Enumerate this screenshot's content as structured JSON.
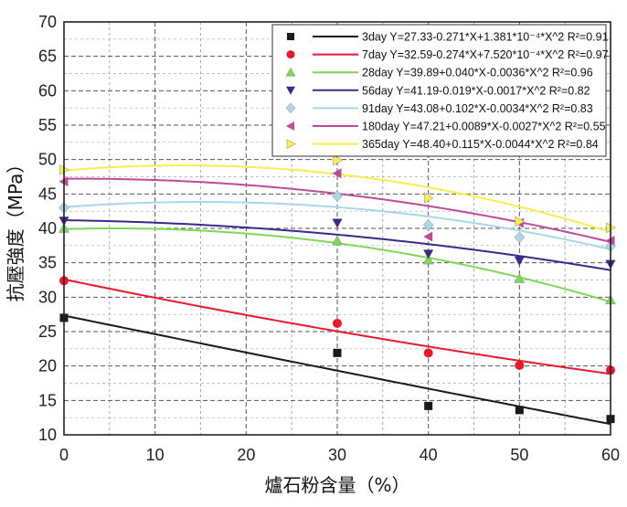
{
  "chart_data": {
    "type": "scatter",
    "xlabel": "爐石粉含量（%）",
    "ylabel": "抗壓強度（MPa）",
    "xlim": [
      0,
      60
    ],
    "ylim": [
      10,
      70
    ],
    "xticks": [
      "0",
      "10",
      "20",
      "30",
      "40",
      "50",
      "60"
    ],
    "yticks": [
      "10",
      "15",
      "20",
      "25",
      "30",
      "35",
      "40",
      "45",
      "50",
      "55",
      "60",
      "65",
      "70"
    ],
    "grid": true,
    "legend_position": "top-right",
    "series": [
      {
        "name": "3day",
        "equation": "Y=27.33-0.271*X+1.381*10⁻⁴*X^2 R²=0.91",
        "color": "#1a1a1a",
        "marker": "square",
        "x": [
          0,
          30,
          40,
          50,
          60
        ],
        "y": [
          27.0,
          21.9,
          14.2,
          13.6,
          12.3
        ],
        "fit": [
          27.33,
          -0.271,
          0.0001381
        ]
      },
      {
        "name": "7day",
        "equation": "Y=32.59-0.274*X+7.520*10⁻⁴*X^2 R²=0.97",
        "color": "#e8192c",
        "marker": "circle",
        "x": [
          0,
          30,
          40,
          50,
          60
        ],
        "y": [
          32.4,
          26.2,
          21.9,
          20.1,
          19.4
        ],
        "fit": [
          32.59,
          -0.274,
          0.000752
        ]
      },
      {
        "name": "28day",
        "equation": "Y=39.89+0.040*X-0.0036*X^2 R²=0.96",
        "color": "#7ed957",
        "marker": "triangle-up",
        "x": [
          0,
          30,
          40,
          50,
          60
        ],
        "y": [
          40.0,
          38.2,
          35.4,
          32.7,
          29.6
        ],
        "fit": [
          39.89,
          0.04,
          -0.0036
        ]
      },
      {
        "name": "56day",
        "equation": "Y=41.19-0.019*X-0.0017*X^2 R²=0.82",
        "color": "#3b2a8c",
        "marker": "triangle-down",
        "x": [
          0,
          30,
          40,
          50,
          60
        ],
        "y": [
          41.1,
          40.8,
          36.3,
          35.3,
          34.8
        ],
        "fit": [
          41.19,
          -0.019,
          -0.0017
        ]
      },
      {
        "name": "91day",
        "equation": "Y=43.08+0.102*X-0.0034*X^2 R²=0.83",
        "color": "#a9d8e8",
        "marker": "diamond",
        "x": [
          0,
          30,
          40,
          50,
          60
        ],
        "y": [
          43.0,
          44.7,
          40.5,
          38.7,
          37.4
        ],
        "fit": [
          43.08,
          0.102,
          -0.0034
        ]
      },
      {
        "name": "180day",
        "equation": "Y=47.21+0.0089*X-0.0027*X^2 R²=0.55",
        "color": "#c04a9a",
        "marker": "triangle-left",
        "x": [
          0,
          30,
          40,
          50,
          60
        ],
        "y": [
          46.8,
          48.0,
          38.8,
          40.8,
          38.2
        ],
        "fit": [
          47.21,
          0.0089,
          -0.0027
        ]
      },
      {
        "name": "365day",
        "equation": "Y=48.40+0.115*X-0.0044*X^2 R²=0.84",
        "color": "#f5f04a",
        "marker": "triangle-right",
        "x": [
          0,
          30,
          40,
          50,
          60
        ],
        "y": [
          48.5,
          49.9,
          44.4,
          41.0,
          40.1
        ],
        "fit": [
          48.4,
          0.115,
          -0.0044
        ]
      }
    ]
  }
}
